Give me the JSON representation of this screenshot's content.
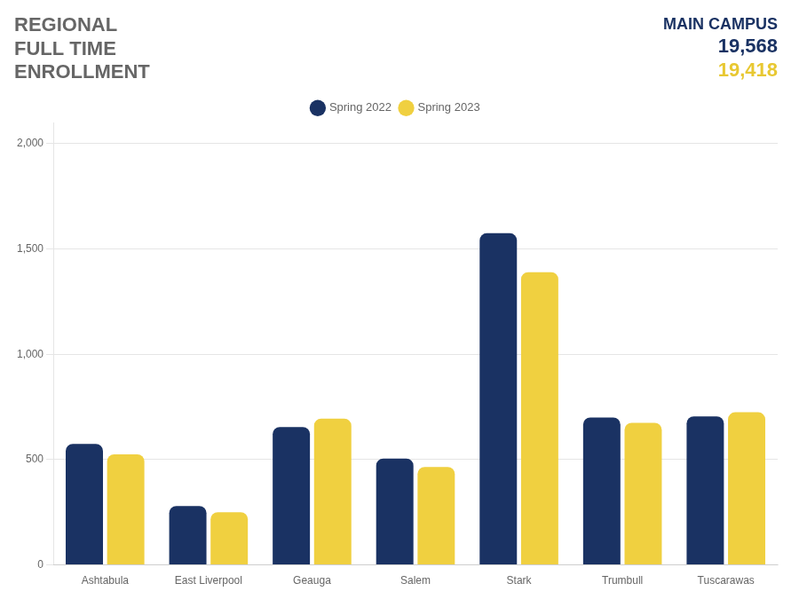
{
  "chart_data": {
    "type": "bar",
    "title": [
      "REGIONAL",
      "FULL TIME",
      "ENROLLMENT"
    ],
    "annotations": [
      {
        "text": "MAIN CAMPUS",
        "color": "#1a3263"
      },
      {
        "text": "19,568",
        "color": "#1a3263"
      },
      {
        "text": "19,418",
        "color": "#e8c832"
      }
    ],
    "categories": [
      "Ashtabula",
      "East Liverpool",
      "Geauga",
      "Salem",
      "Stark",
      "Trumbull",
      "Tuscarawas"
    ],
    "series": [
      {
        "name": "Spring 2022",
        "color": "#1a3263",
        "values": [
          575,
          280,
          655,
          505,
          1575,
          700,
          705
        ]
      },
      {
        "name": "Spring 2023",
        "color": "#f0d040",
        "values": [
          525,
          250,
          695,
          465,
          1390,
          675,
          725
        ]
      }
    ],
    "ylim": [
      0,
      2100
    ],
    "yticks": [
      0,
      500,
      {
        "value": 1000,
        "label": "1,000"
      },
      {
        "value": 1500,
        "label": "1,500"
      },
      {
        "value": 2000,
        "label": "2,000"
      }
    ],
    "grid": true,
    "legend": "top"
  }
}
